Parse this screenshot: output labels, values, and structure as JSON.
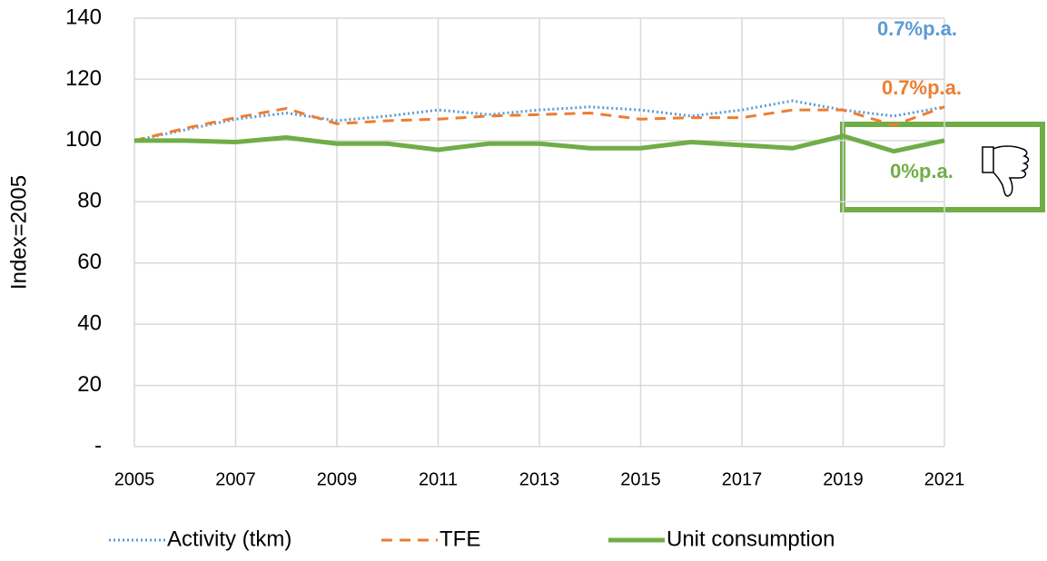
{
  "chart_data": {
    "type": "line",
    "ylabel": "Index=2005",
    "x": [
      2005,
      2006,
      2007,
      2008,
      2009,
      2010,
      2011,
      2012,
      2013,
      2014,
      2015,
      2016,
      2017,
      2018,
      2019,
      2020,
      2021
    ],
    "series": [
      {
        "name": "Activity (tkm)",
        "color": "#5b9bd5",
        "style": "dotted",
        "values": [
          100,
          103.5,
          107,
          109,
          106.5,
          108,
          110,
          108.5,
          110,
          111,
          110,
          108,
          110,
          113,
          110,
          108,
          111
        ]
      },
      {
        "name": "TFE",
        "color": "#ed7d31",
        "style": "dashed",
        "values": [
          100,
          104,
          107.5,
          110.5,
          105.5,
          106.5,
          107,
          108,
          108.5,
          109,
          107,
          107.5,
          107.5,
          110,
          110,
          105,
          111
        ]
      },
      {
        "name": "Unit consumption",
        "color": "#70ad47",
        "style": "solid",
        "values": [
          100,
          100,
          99.5,
          101,
          99,
          99,
          97,
          99,
          99,
          97.5,
          97.5,
          99.5,
          98.5,
          97.5,
          101.5,
          96.5,
          100
        ]
      }
    ],
    "xlim": [
      2005,
      2021
    ],
    "xticks": [
      2005,
      2007,
      2009,
      2011,
      2013,
      2015,
      2017,
      2019,
      2021
    ],
    "ylim": [
      0,
      140
    ],
    "yticks": [
      {
        "value": 0,
        "label": "-"
      },
      20,
      40,
      60,
      80,
      100,
      120,
      140
    ],
    "grid": true,
    "legend": "bottom",
    "annotations": [
      {
        "text": "0.7%p.a.",
        "color": "#5b9bd5"
      },
      {
        "text": "0.7%p.a.",
        "color": "#ed7d31"
      },
      {
        "text": "0%p.a.",
        "color": "#70ad47"
      }
    ]
  }
}
